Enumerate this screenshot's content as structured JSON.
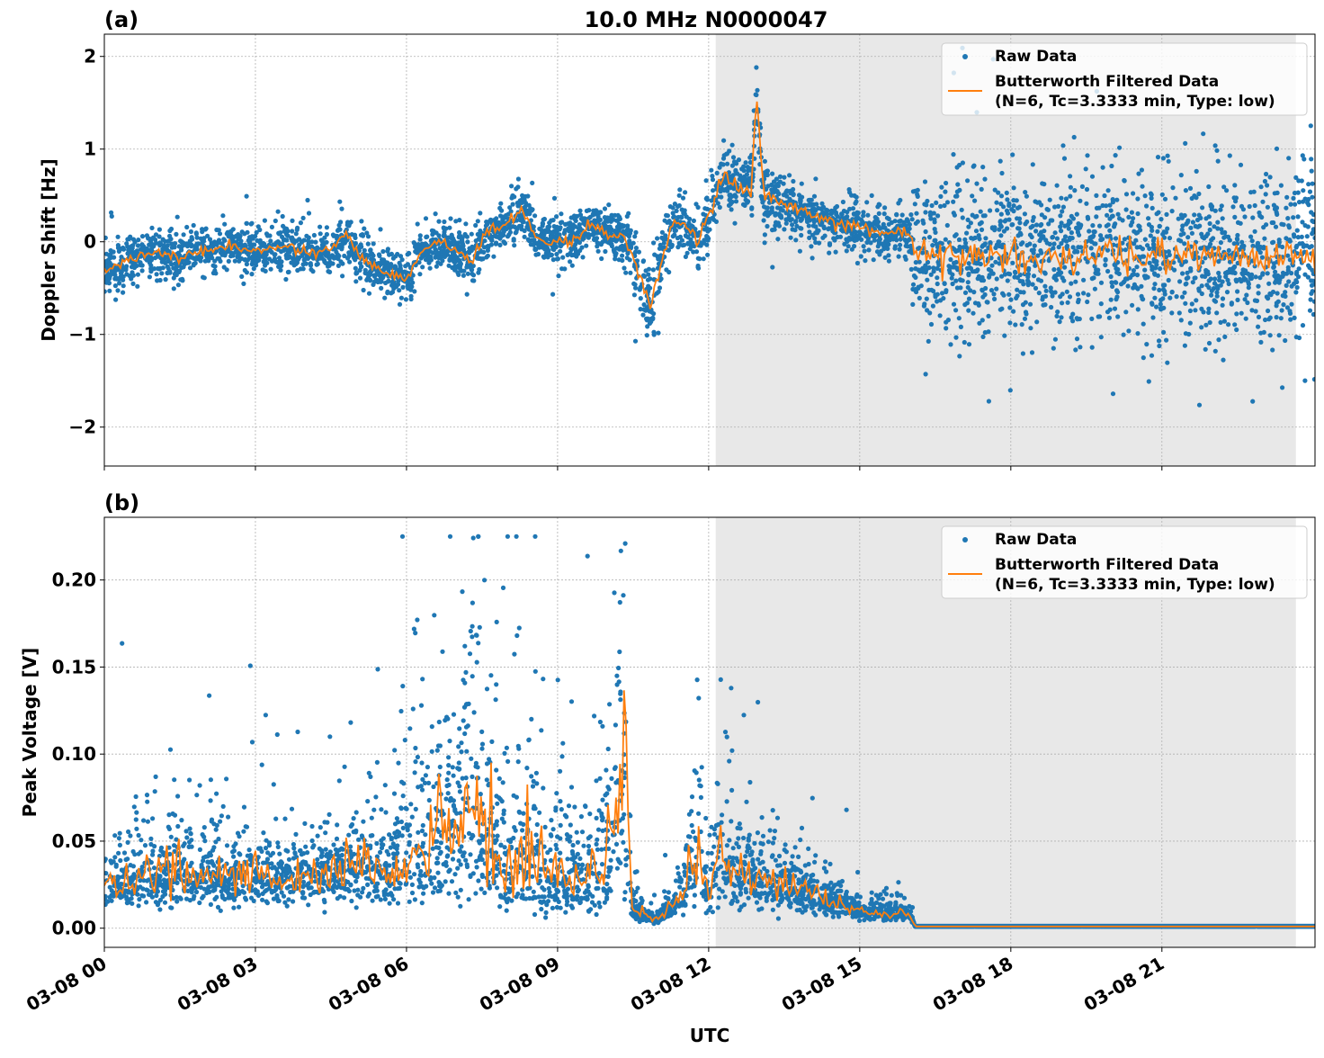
{
  "title": "10.0 MHz N0000047",
  "xlabel": "UTC",
  "x_ticks": [
    {
      "hour": 0,
      "label": "03-08 00"
    },
    {
      "hour": 3,
      "label": "03-08 03"
    },
    {
      "hour": 6,
      "label": "03-08 06"
    },
    {
      "hour": 9,
      "label": "03-08 09"
    },
    {
      "hour": 12,
      "label": "03-08 12"
    },
    {
      "hour": 15,
      "label": "03-08 15"
    },
    {
      "hour": 18,
      "label": "03-08 18"
    },
    {
      "hour": 21,
      "label": "03-08 21"
    }
  ],
  "colors": {
    "raw": "#1f77b4",
    "filtered": "#ff7f0e",
    "shade": "#e8e8e8"
  },
  "chart_data": [
    {
      "type": "scatter",
      "panel_label": "(a)",
      "ylabel": "Doppler Shift [Hz]",
      "xlim": [
        0,
        24.04
      ],
      "ylim": [
        -2.42,
        2.24
      ],
      "grid": true,
      "shaded_interval_hours": [
        12.14,
        23.66
      ],
      "yticks": [
        {
          "v": -2,
          "label": "−2"
        },
        {
          "v": -1,
          "label": "−1"
        },
        {
          "v": 0,
          "label": "0"
        },
        {
          "v": 1,
          "label": "1"
        },
        {
          "v": 2,
          "label": "2"
        }
      ],
      "legend": {
        "placement": "top-right",
        "entries": [
          "Raw Data",
          "Butterworth Filtered Data",
          "(N=6, Tc=3.3333 min, Type: low)"
        ]
      },
      "filtered": {
        "hours": [
          0,
          0.5,
          1,
          1.5,
          2,
          2.5,
          3,
          3.5,
          4,
          4.5,
          4.8,
          5,
          5.5,
          6,
          6.3,
          6.7,
          7,
          7.3,
          7.6,
          8,
          8.3,
          8.6,
          9,
          9.3,
          9.6,
          10,
          10.3,
          10.6,
          10.85,
          11.2,
          11.5,
          11.8,
          12,
          12.3,
          12.6,
          12.85,
          12.95,
          13.1,
          13.5,
          14,
          14.5,
          15,
          15.5,
          16,
          16.1,
          18,
          20,
          22,
          24
        ],
        "values": [
          -0.3,
          -0.2,
          -0.1,
          -0.15,
          -0.1,
          -0.05,
          -0.1,
          -0.05,
          -0.1,
          -0.1,
          0.1,
          -0.1,
          -0.3,
          -0.4,
          -0.1,
          0.0,
          -0.1,
          -0.2,
          0.1,
          0.2,
          0.35,
          0.0,
          0.0,
          0.0,
          0.2,
          0.1,
          0.05,
          -0.3,
          -0.7,
          0.1,
          0.2,
          0.0,
          0.3,
          0.7,
          0.6,
          0.6,
          1.6,
          0.5,
          0.4,
          0.3,
          0.2,
          0.15,
          0.1,
          0.1,
          -0.1,
          -0.15,
          -0.15,
          -0.15,
          -0.15
        ]
      },
      "raw_spread": {
        "hours": [
          0,
          10,
          10.8,
          11.5,
          12.9,
          13.2,
          16,
          16.1,
          24
        ],
        "values": [
          0.25,
          0.25,
          0.45,
          0.3,
          0.35,
          0.3,
          0.25,
          0.9,
          0.9
        ]
      }
    },
    {
      "type": "scatter",
      "panel_label": "(b)",
      "ylabel": "Peak Voltage [V]",
      "xlim": [
        0,
        24.04
      ],
      "ylim": [
        -0.011,
        0.236
      ],
      "grid": true,
      "shaded_interval_hours": [
        12.14,
        23.66
      ],
      "yticks": [
        {
          "v": 0,
          "label": "0.00"
        },
        {
          "v": 0.05,
          "label": "0.05"
        },
        {
          "v": 0.1,
          "label": "0.10"
        },
        {
          "v": 0.15,
          "label": "0.15"
        },
        {
          "v": 0.2,
          "label": "0.20"
        }
      ],
      "legend": {
        "placement": "top-right",
        "entries": [
          "Raw Data",
          "Butterworth Filtered Data",
          "(N=6, Tc=3.3333 min, Type: low)"
        ]
      },
      "filtered": {
        "hours": [
          0,
          1,
          2,
          3,
          4,
          5,
          5.7,
          6,
          6.5,
          7,
          7.3,
          7.6,
          8,
          8.5,
          9,
          9.5,
          10,
          10.3,
          10.5,
          11,
          11.5,
          11.8,
          12,
          12.2,
          12.5,
          13,
          14,
          15,
          16,
          16.1,
          24
        ],
        "values": [
          0.025,
          0.03,
          0.03,
          0.03,
          0.03,
          0.035,
          0.03,
          0.05,
          0.05,
          0.06,
          0.08,
          0.05,
          0.04,
          0.04,
          0.03,
          0.03,
          0.04,
          0.09,
          0.01,
          0.005,
          0.02,
          0.05,
          0.02,
          0.05,
          0.03,
          0.03,
          0.02,
          0.01,
          0.008,
          0.001,
          0.001
        ]
      },
      "raw_spread": {
        "hours": [
          0,
          5.7,
          6,
          10.5,
          10.6,
          11.3,
          11.5,
          16,
          16.1,
          24
        ],
        "values": [
          0.6,
          0.6,
          1.0,
          1.0,
          0.5,
          0.5,
          0.8,
          0.5,
          0,
          0
        ]
      }
    }
  ]
}
